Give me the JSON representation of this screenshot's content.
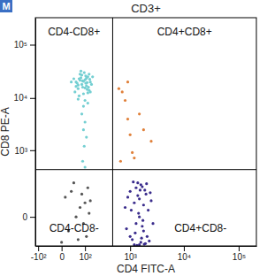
{
  "chart_data": {
    "type": "scatter",
    "title": "CD3+",
    "panel_label": "M",
    "x_label": "CD4 FITC-A",
    "y_label": "CD8 PE-A",
    "quadrant_labels": {
      "top_left": "CD4-CD8+",
      "top_right": "CD4+CD8+",
      "bottom_left": "CD4-CD8-",
      "bottom_right": "CD4+CD8-"
    },
    "gates": {
      "x": 450,
      "y": 400
    },
    "xlim": [
      -120,
      210000
    ],
    "xticks": [
      {
        "value": -100,
        "label": "-10²"
      },
      0,
      {
        "value": 100,
        "label": "10²"
      },
      {
        "value": 1000,
        "label": "10³"
      },
      {
        "value": 10000,
        "label": "10⁴"
      },
      {
        "value": 100000,
        "label": "10⁵"
      }
    ],
    "ylim": [
      -150,
      320000
    ],
    "yticks": [
      0,
      {
        "value": 1000,
        "label": "10³"
      },
      {
        "value": 10000,
        "label": "10⁴"
      },
      {
        "value": 100000,
        "label": "10⁵"
      }
    ],
    "series": [
      {
        "color": "#74cfd2",
        "x": [
          50,
          80,
          100,
          120,
          60,
          90,
          140,
          70,
          110,
          40,
          130,
          95,
          55,
          85,
          150,
          65,
          105,
          125,
          45,
          75,
          115,
          135,
          60,
          90,
          100,
          80,
          120,
          70,
          110,
          50,
          160,
          30,
          140,
          100,
          90,
          80,
          100,
          90,
          110,
          95,
          85,
          100,
          120,
          60,
          130,
          75,
          105,
          85,
          115,
          65
        ],
        "y": [
          20000,
          18000,
          22000,
          25000,
          15000,
          12000,
          20000,
          28000,
          17000,
          23000,
          14000,
          30000,
          19000,
          21000,
          18000,
          11000,
          26000,
          16000,
          13000,
          24000,
          19500,
          22500,
          17500,
          20500,
          15500,
          27000,
          12500,
          21500,
          23500,
          16500,
          25000,
          20000,
          13000,
          9000,
          7000,
          5000,
          3500,
          2500,
          1800,
          1200,
          600,
          450,
          8000,
          9500,
          28000,
          32000,
          19000,
          16000,
          14500,
          23000
        ]
      },
      {
        "color": "#3a2c8c",
        "x": [
          1500,
          1200,
          1800,
          2000,
          1000,
          1300,
          1600,
          2200,
          900,
          1400,
          1700,
          2500,
          1100,
          1900,
          1500,
          1300,
          2100,
          800,
          1600,
          1200,
          1400,
          1800,
          2300,
          1000,
          1500,
          1700,
          1250,
          1950,
          1450,
          2700,
          1150,
          1650,
          850,
          2050,
          1350,
          1550,
          1750,
          1050,
          2400,
          1850
        ],
        "y": [
          0,
          50,
          -50,
          100,
          -80,
          150,
          -120,
          20,
          80,
          200,
          -30,
          60,
          -100,
          130,
          -140,
          -20,
          -80,
          30,
          180,
          -140,
          90,
          40,
          -110,
          120,
          70,
          160,
          -60,
          -130,
          10,
          -20,
          210,
          -90,
          -40,
          190,
          -145,
          130,
          -10,
          20,
          110,
          -135
        ]
      },
      {
        "color": "#555555",
        "x": [
          50,
          80,
          20,
          100,
          60,
          120,
          40,
          90,
          10,
          70,
          110,
          30,
          140,
          0,
          130
        ],
        "y": [
          0,
          100,
          -50,
          50,
          -100,
          150,
          200,
          -20,
          80,
          30,
          -80,
          120,
          60,
          -120,
          10
        ]
      },
      {
        "color": "#e0803a",
        "x": [
          600,
          700,
          800,
          900,
          1000,
          1100,
          1200,
          1500,
          2500,
          650,
          1800,
          900
        ],
        "y": [
          15000,
          13000,
          9000,
          4000,
          2000,
          900,
          700,
          5000,
          1500,
          600,
          2500,
          20000
        ]
      }
    ]
  }
}
